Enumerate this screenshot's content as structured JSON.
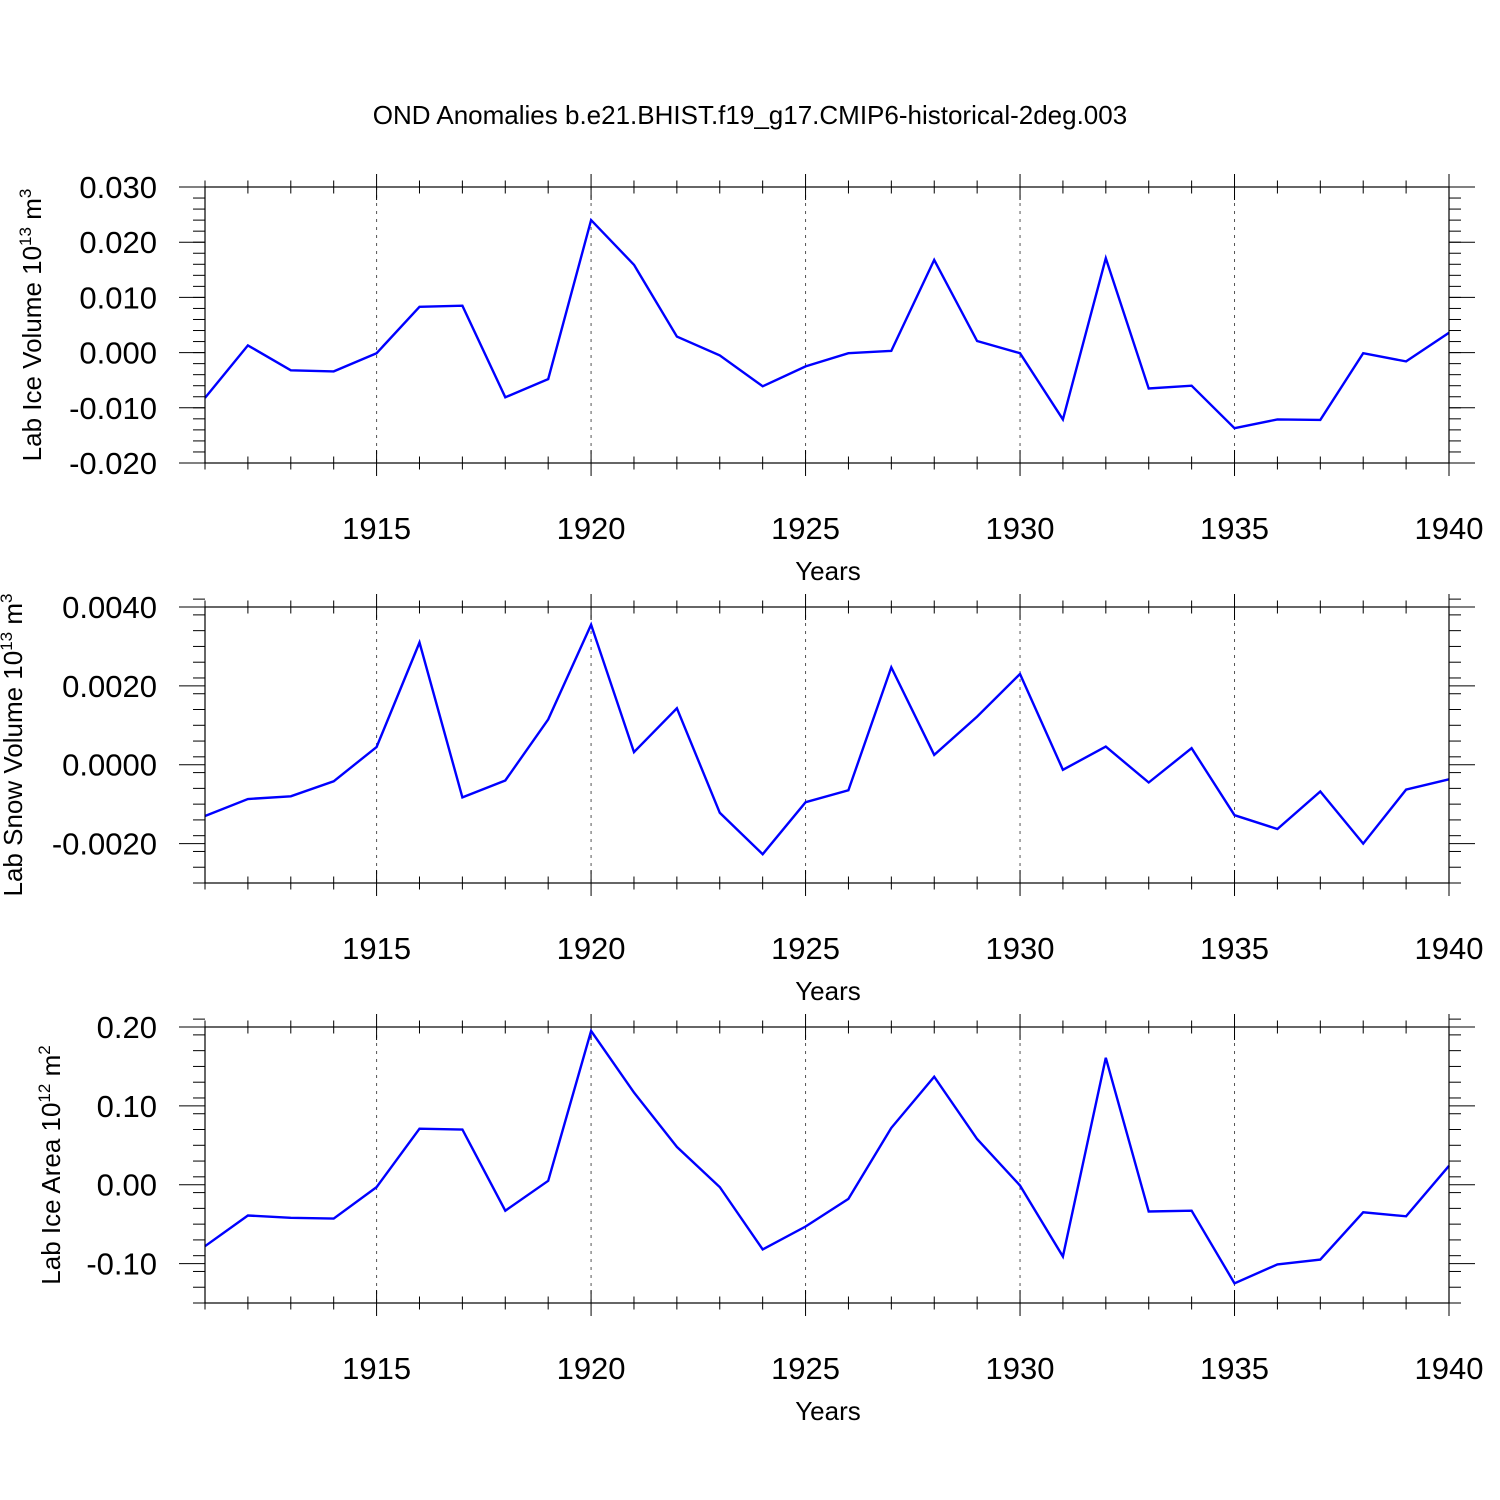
{
  "title": "OND Anomalies b.e21.BHIST.f19_g17.CMIP6-historical-2deg.003",
  "colors": {
    "line": "#0000ff",
    "axis": "#000000",
    "grid": "#555555"
  },
  "chart_data": [
    {
      "type": "line",
      "id": "ice-volume",
      "ylabel_main": "Lab Ice Volume 10",
      "ylabel_exp": "13",
      "ylabel_unit": " m",
      "ylabel_unit_exp": "3",
      "xlabel": "Years",
      "xlim": [
        1911,
        1940
      ],
      "ylim": [
        -0.02,
        0.03
      ],
      "xticks": [
        1915,
        1920,
        1925,
        1930,
        1935,
        1940
      ],
      "yticks": [
        -0.02,
        -0.01,
        0.0,
        0.01,
        0.02,
        0.03
      ],
      "ytick_labels": [
        "-0.020",
        "-0.010",
        "0.000",
        "0.010",
        "0.020",
        "0.030"
      ],
      "yminor_step": 0.002,
      "x": [
        1911,
        1912,
        1913,
        1914,
        1915,
        1916,
        1917,
        1918,
        1919,
        1920,
        1921,
        1922,
        1923,
        1924,
        1925,
        1926,
        1927,
        1928,
        1929,
        1930,
        1931,
        1932,
        1933,
        1934,
        1935,
        1936,
        1937,
        1938,
        1939,
        1940
      ],
      "values": [
        -0.0082,
        0.0013,
        -0.0032,
        -0.0034,
        -0.0001,
        0.0083,
        0.0085,
        -0.0081,
        -0.0048,
        0.024,
        0.0159,
        0.0029,
        -0.0005,
        -0.0061,
        -0.0025,
        -0.0001,
        0.0003,
        0.0168,
        0.0021,
        -0.0001,
        -0.0121,
        0.0171,
        -0.0065,
        -0.006,
        -0.0137,
        -0.0121,
        -0.0122,
        -0.0001,
        -0.0016,
        0.0036
      ]
    },
    {
      "type": "line",
      "id": "snow-volume",
      "ylabel_main": "Lab Snow Volume 10",
      "ylabel_exp": "13",
      "ylabel_unit": " m",
      "ylabel_unit_exp": "3",
      "xlabel": "Years",
      "xlim": [
        1911,
        1940
      ],
      "ylim": [
        -0.003,
        0.004
      ],
      "xticks": [
        1915,
        1920,
        1925,
        1930,
        1935,
        1940
      ],
      "yticks": [
        -0.002,
        0.0,
        0.002,
        0.004
      ],
      "ytick_labels": [
        "-0.0020",
        "0.0000",
        "0.0020",
        "0.0040"
      ],
      "yminor_step": 0.0004,
      "x": [
        1911,
        1912,
        1913,
        1914,
        1915,
        1916,
        1917,
        1918,
        1919,
        1920,
        1921,
        1922,
        1923,
        1924,
        1925,
        1926,
        1927,
        1928,
        1929,
        1930,
        1931,
        1932,
        1933,
        1934,
        1935,
        1936,
        1937,
        1938,
        1939,
        1940
      ],
      "values": [
        -0.0013,
        -0.00087,
        -0.0008,
        -0.00042,
        0.00045,
        0.0031,
        -0.00083,
        -0.0004,
        0.00115,
        0.00355,
        0.00032,
        0.00143,
        -0.00122,
        -0.00227,
        -0.00095,
        -0.00065,
        0.00247,
        0.00025,
        0.00122,
        0.0023,
        -0.00013,
        0.00046,
        -0.00045,
        0.00042,
        -0.00128,
        -0.00163,
        -0.00068,
        -0.002,
        -0.00063,
        -0.00037
      ]
    },
    {
      "type": "line",
      "id": "ice-area",
      "ylabel_main": "Lab Ice Area 10",
      "ylabel_exp": "12",
      "ylabel_unit": " m",
      "ylabel_unit_exp": "2",
      "xlabel": "Years",
      "xlim": [
        1911,
        1940
      ],
      "ylim": [
        -0.15,
        0.2
      ],
      "xticks": [
        1915,
        1920,
        1925,
        1930,
        1935,
        1940
      ],
      "yticks": [
        -0.1,
        0.0,
        0.1,
        0.2
      ],
      "ytick_labels": [
        "-0.10",
        "0.00",
        "0.10",
        "0.20"
      ],
      "yminor_step": 0.02,
      "x": [
        1911,
        1912,
        1913,
        1914,
        1915,
        1916,
        1917,
        1918,
        1919,
        1920,
        1921,
        1922,
        1923,
        1924,
        1925,
        1926,
        1927,
        1928,
        1929,
        1930,
        1931,
        1932,
        1933,
        1934,
        1935,
        1936,
        1937,
        1938,
        1939,
        1940
      ],
      "values": [
        -0.078,
        -0.039,
        -0.042,
        -0.043,
        -0.003,
        0.071,
        0.07,
        -0.033,
        0.005,
        0.195,
        0.117,
        0.048,
        -0.003,
        -0.082,
        -0.053,
        -0.018,
        0.072,
        0.137,
        0.058,
        -0.001,
        -0.091,
        0.161,
        -0.034,
        -0.033,
        -0.125,
        -0.101,
        -0.095,
        -0.035,
        -0.04,
        0.024
      ]
    }
  ]
}
